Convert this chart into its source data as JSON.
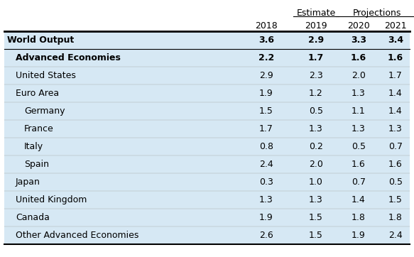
{
  "header_group1": "Estimate",
  "header_group2": "Projections",
  "col_headers": [
    "2018",
    "2019",
    "2020",
    "2021"
  ],
  "rows": [
    {
      "label": "World Output",
      "indent": 0,
      "bold": true,
      "values": [
        "3.6",
        "2.9",
        "3.3",
        "3.4"
      ]
    },
    {
      "label": "Advanced Economies",
      "indent": 1,
      "bold": true,
      "values": [
        "2.2",
        "1.7",
        "1.6",
        "1.6"
      ]
    },
    {
      "label": "United States",
      "indent": 1,
      "bold": false,
      "values": [
        "2.9",
        "2.3",
        "2.0",
        "1.7"
      ]
    },
    {
      "label": "Euro Area",
      "indent": 1,
      "bold": false,
      "values": [
        "1.9",
        "1.2",
        "1.3",
        "1.4"
      ]
    },
    {
      "label": "Germany",
      "indent": 2,
      "bold": false,
      "values": [
        "1.5",
        "0.5",
        "1.1",
        "1.4"
      ]
    },
    {
      "label": "France",
      "indent": 2,
      "bold": false,
      "values": [
        "1.7",
        "1.3",
        "1.3",
        "1.3"
      ]
    },
    {
      "label": "Italy",
      "indent": 2,
      "bold": false,
      "values": [
        "0.8",
        "0.2",
        "0.5",
        "0.7"
      ]
    },
    {
      "label": "Spain",
      "indent": 2,
      "bold": false,
      "values": [
        "2.4",
        "2.0",
        "1.6",
        "1.6"
      ]
    },
    {
      "label": "Japan",
      "indent": 1,
      "bold": false,
      "values": [
        "0.3",
        "1.0",
        "0.7",
        "0.5"
      ]
    },
    {
      "label": "United Kingdom",
      "indent": 1,
      "bold": false,
      "values": [
        "1.3",
        "1.3",
        "1.4",
        "1.5"
      ]
    },
    {
      "label": "Canada",
      "indent": 1,
      "bold": false,
      "values": [
        "1.9",
        "1.5",
        "1.8",
        "1.8"
      ]
    },
    {
      "label": "Other Advanced Economies",
      "indent": 1,
      "bold": false,
      "values": [
        "2.6",
        "1.5",
        "1.9",
        "2.4"
      ]
    }
  ],
  "bg_blue": "#d6e8f4",
  "bg_white": "#ffffff",
  "line_color": "#000000",
  "text_color": "#000000",
  "font_size": 9.0,
  "header_font_size": 9.0
}
